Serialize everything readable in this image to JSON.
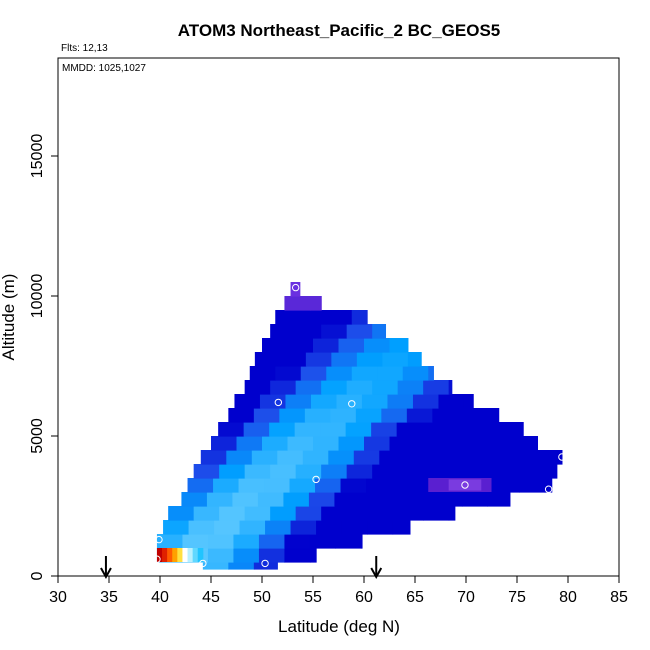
{
  "chart_data": {
    "type": "heatmap",
    "title": "ATOM3 Northeast_Pacific_2 BC_GEOS5",
    "annotations": {
      "flights": "Flts: 12,13",
      "dates": "MMDD: 1025,1027"
    },
    "xlabel": "Latitude (deg N)",
    "ylabel": "Altitude (m)",
    "xlim": [
      30,
      85
    ],
    "ylim": [
      0,
      18500
    ],
    "x_ticks": [
      30,
      35,
      40,
      45,
      50,
      55,
      60,
      65,
      70,
      75,
      80,
      85
    ],
    "y_ticks": [
      0,
      5000,
      10000,
      15000
    ],
    "x_tick_labels": [
      "30",
      "35",
      "40",
      "45",
      "50",
      "55",
      "60",
      "65",
      "70",
      "75",
      "80",
      "85"
    ],
    "y_tick_labels": [
      "0",
      "5000",
      "10000",
      "15000"
    ],
    "grid": false,
    "arrow_markers_lat": [
      34.7,
      61.2
    ],
    "curtain_rows": [
      {
        "alt": 500,
        "lat_start": 44.2,
        "lat_end": 51.5
      },
      {
        "alt": 750,
        "lat_start": 39.7,
        "lat_end": 55.3
      },
      {
        "alt": 1250,
        "lat_start": 39.7,
        "lat_end": 59.8
      },
      {
        "alt": 1750,
        "lat_start": 40.3,
        "lat_end": 64.5
      },
      {
        "alt": 2250,
        "lat_start": 40.8,
        "lat_end": 68.9
      },
      {
        "alt": 2750,
        "lat_start": 42.1,
        "lat_end": 74.3
      },
      {
        "alt": 3250,
        "lat_start": 42.7,
        "lat_end": 78.4
      },
      {
        "alt": 3750,
        "lat_start": 43.3,
        "lat_end": 78.9
      },
      {
        "alt": 4250,
        "lat_start": 44.0,
        "lat_end": 79.4
      },
      {
        "alt": 4750,
        "lat_start": 45.0,
        "lat_end": 77.0
      },
      {
        "alt": 5250,
        "lat_start": 45.7,
        "lat_end": 75.6
      },
      {
        "alt": 5750,
        "lat_start": 46.7,
        "lat_end": 73.2
      },
      {
        "alt": 6250,
        "lat_start": 47.3,
        "lat_end": 70.7
      },
      {
        "alt": 6750,
        "lat_start": 48.3,
        "lat_end": 68.6
      },
      {
        "alt": 7250,
        "lat_start": 48.8,
        "lat_end": 66.8
      },
      {
        "alt": 7750,
        "lat_start": 49.3,
        "lat_end": 65.6
      },
      {
        "alt": 8250,
        "lat_start": 50.0,
        "lat_end": 64.3
      },
      {
        "alt": 8750,
        "lat_start": 50.8,
        "lat_end": 62.1
      },
      {
        "alt": 9250,
        "lat_start": 51.3,
        "lat_end": 60.3
      },
      {
        "alt": 9750,
        "lat_start": 52.2,
        "lat_end": 55.8
      },
      {
        "alt": 10250,
        "lat_start": 52.8,
        "lat_end": 53.7
      }
    ],
    "flight_points": [
      {
        "lat": 39.7,
        "alt": 600
      },
      {
        "lat": 39.9,
        "alt": 1300
      },
      {
        "lat": 44.2,
        "alt": 450
      },
      {
        "lat": 50.3,
        "alt": 450
      },
      {
        "lat": 51.6,
        "alt": 6200
      },
      {
        "lat": 55.3,
        "alt": 3450
      },
      {
        "lat": 58.8,
        "alt": 6150
      },
      {
        "lat": 69.9,
        "alt": 3250
      },
      {
        "lat": 78.1,
        "alt": 3100
      },
      {
        "lat": 79.4,
        "alt": 4250
      },
      {
        "lat": 53.3,
        "alt": 10300
      }
    ]
  }
}
